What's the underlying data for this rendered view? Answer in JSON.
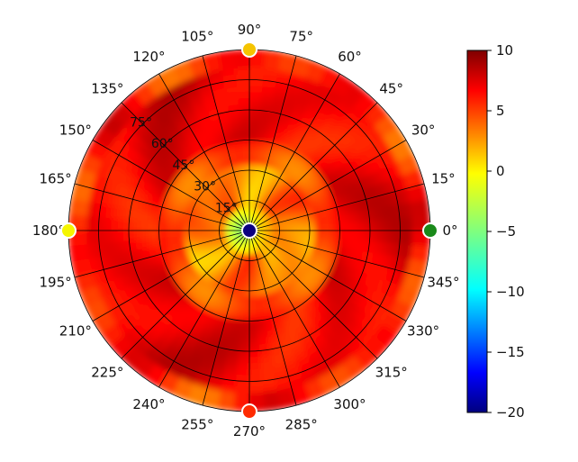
{
  "chart_data": {
    "type": "heatmap",
    "projection": "polar",
    "title": "",
    "angular_ticks": [
      "0°",
      "15°",
      "30°",
      "45°",
      "60°",
      "75°",
      "90°",
      "105°",
      "120°",
      "135°",
      "150°",
      "165°",
      "180°",
      "195°",
      "210°",
      "225°",
      "240°",
      "255°",
      "270°",
      "285°",
      "300°",
      "315°",
      "330°",
      "345°"
    ],
    "radial_ticks": [
      "15°",
      "30°",
      "45°",
      "60°",
      "75°"
    ],
    "radial_tick_values": [
      15,
      30,
      45,
      60,
      75
    ],
    "radial_max": 90,
    "radial_label_angle": 135,
    "angular_step": 15,
    "grid": true,
    "colorbar": {
      "colormap": "jet",
      "min": -20,
      "max": 10,
      "ticks": [
        "10",
        "5",
        "0",
        "−5",
        "−10",
        "−15",
        "−20"
      ],
      "tick_values": [
        10,
        5,
        0,
        -5,
        -10,
        -15,
        -20
      ],
      "placement": "right"
    },
    "value_range": [
      -20,
      10
    ],
    "description_values": {
      "outer_ring_typical": 7,
      "mid_ring_typical": 3,
      "inner_typical": 0,
      "center": -20
    },
    "markers": [
      {
        "angle": 0,
        "elevation": 90,
        "value": -4,
        "color": "#1a8a1a"
      },
      {
        "angle": 90,
        "elevation": 90,
        "value": 2,
        "color": "#f5c400"
      },
      {
        "angle": 180,
        "elevation": 90,
        "value": 1,
        "color": "#f5f500"
      },
      {
        "angle": 270,
        "elevation": 90,
        "value": 6,
        "color": "#ff2a00"
      },
      {
        "angle": 0,
        "elevation": 0,
        "value": -20,
        "color": "#0a0080"
      }
    ]
  }
}
